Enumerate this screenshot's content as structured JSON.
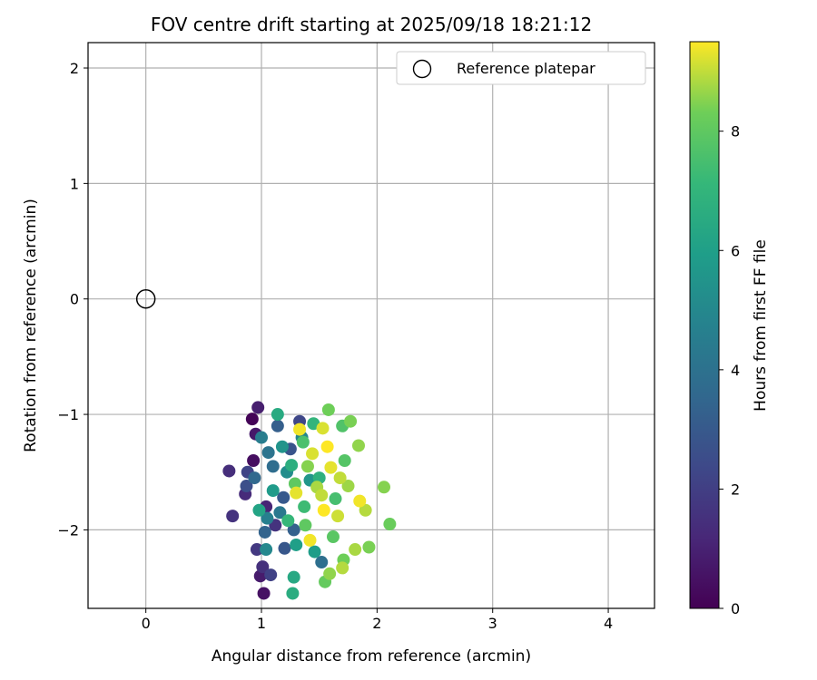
{
  "chart_data": {
    "type": "scatter",
    "title": "FOV centre drift starting at 2025/09/18 18:21:12",
    "xlabel": "Angular distance from reference (arcmin)",
    "ylabel": "Rotation from reference (arcmin)",
    "xlim": [
      -0.5,
      4.4
    ],
    "ylim": [
      -2.68,
      2.22
    ],
    "xticks": [
      0,
      1,
      2,
      3,
      4
    ],
    "yticks": [
      -2,
      -1,
      0,
      1,
      2
    ],
    "xtick_labels": [
      "0",
      "1",
      "2",
      "3",
      "4"
    ],
    "ytick_labels": [
      "−2",
      "−1",
      "0",
      "1",
      "2"
    ],
    "grid": true,
    "reference": {
      "x": 0,
      "y": 0,
      "label": "Reference platepar",
      "marker": "open-circle"
    },
    "legend": {
      "position": "top-right",
      "entries": [
        "Reference platepar"
      ]
    },
    "colorbar": {
      "label": "Hours from first FF file",
      "range": [
        0,
        9.5
      ],
      "ticks": [
        0,
        2,
        4,
        6,
        8
      ],
      "tick_labels": [
        "0",
        "2",
        "4",
        "6",
        "8"
      ],
      "colormap": "viridis"
    },
    "points": [
      {
        "x": 0.92,
        "y": -1.04,
        "h": 0.1
      },
      {
        "x": 0.97,
        "y": -0.94,
        "h": 0.9
      },
      {
        "x": 0.72,
        "y": -1.49,
        "h": 1.4
      },
      {
        "x": 0.75,
        "y": -1.88,
        "h": 1.6
      },
      {
        "x": 0.86,
        "y": -1.69,
        "h": 1.3
      },
      {
        "x": 1.02,
        "y": -2.55,
        "h": 0.5
      },
      {
        "x": 0.99,
        "y": -2.4,
        "h": 0.8
      },
      {
        "x": 1.01,
        "y": -2.32,
        "h": 1.5
      },
      {
        "x": 1.08,
        "y": -2.39,
        "h": 2.1
      },
      {
        "x": 0.96,
        "y": -2.17,
        "h": 1.8
      },
      {
        "x": 0.93,
        "y": -1.4,
        "h": 0.4
      },
      {
        "x": 0.95,
        "y": -1.17,
        "h": 0.7
      },
      {
        "x": 1.04,
        "y": -1.8,
        "h": 1.1
      },
      {
        "x": 1.12,
        "y": -1.96,
        "h": 1.6
      },
      {
        "x": 0.88,
        "y": -1.5,
        "h": 2.2
      },
      {
        "x": 0.87,
        "y": -1.62,
        "h": 2.6
      },
      {
        "x": 1.2,
        "y": -2.16,
        "h": 2.9
      },
      {
        "x": 1.03,
        "y": -2.02,
        "h": 3.4
      },
      {
        "x": 0.94,
        "y": -1.55,
        "h": 3.6
      },
      {
        "x": 1.1,
        "y": -1.45,
        "h": 3.8
      },
      {
        "x": 1.14,
        "y": -1.1,
        "h": 3.2
      },
      {
        "x": 1.33,
        "y": -1.06,
        "h": 2.3
      },
      {
        "x": 1.25,
        "y": -1.3,
        "h": 2.8
      },
      {
        "x": 1.19,
        "y": -1.72,
        "h": 3.0
      },
      {
        "x": 1.28,
        "y": -2.0,
        "h": 3.3
      },
      {
        "x": 1.06,
        "y": -1.33,
        "h": 4.1
      },
      {
        "x": 1.0,
        "y": -1.2,
        "h": 4.5
      },
      {
        "x": 0.98,
        "y": -1.83,
        "h": 6.2
      },
      {
        "x": 1.04,
        "y": -2.17,
        "h": 5.0
      },
      {
        "x": 1.14,
        "y": -1.0,
        "h": 6.5
      },
      {
        "x": 1.28,
        "y": -2.41,
        "h": 6.4
      },
      {
        "x": 1.27,
        "y": -2.55,
        "h": 6.6
      },
      {
        "x": 1.22,
        "y": -1.5,
        "h": 5.2
      },
      {
        "x": 1.35,
        "y": -1.2,
        "h": 4.9
      },
      {
        "x": 1.42,
        "y": -1.57,
        "h": 5.6
      },
      {
        "x": 1.46,
        "y": -2.19,
        "h": 5.9
      },
      {
        "x": 1.52,
        "y": -2.28,
        "h": 3.9
      },
      {
        "x": 1.3,
        "y": -2.13,
        "h": 6.0
      },
      {
        "x": 1.45,
        "y": -1.08,
        "h": 7.0
      },
      {
        "x": 1.58,
        "y": -0.96,
        "h": 8.3
      },
      {
        "x": 1.7,
        "y": -1.1,
        "h": 7.7
      },
      {
        "x": 1.77,
        "y": -1.06,
        "h": 8.4
      },
      {
        "x": 1.84,
        "y": -1.27,
        "h": 8.6
      },
      {
        "x": 2.06,
        "y": -1.63,
        "h": 8.5
      },
      {
        "x": 2.11,
        "y": -1.95,
        "h": 8.2
      },
      {
        "x": 1.93,
        "y": -2.15,
        "h": 8.4
      },
      {
        "x": 1.81,
        "y": -2.17,
        "h": 8.8
      },
      {
        "x": 1.7,
        "y": -2.33,
        "h": 8.9
      },
      {
        "x": 1.71,
        "y": -2.26,
        "h": 8.3
      },
      {
        "x": 1.59,
        "y": -2.38,
        "h": 8.6
      },
      {
        "x": 1.55,
        "y": -2.45,
        "h": 8.1
      },
      {
        "x": 1.53,
        "y": -1.12,
        "h": 9.2
      },
      {
        "x": 1.33,
        "y": -1.13,
        "h": 9.4
      },
      {
        "x": 1.36,
        "y": -1.24,
        "h": 7.6
      },
      {
        "x": 1.6,
        "y": -1.46,
        "h": 9.3
      },
      {
        "x": 1.68,
        "y": -1.55,
        "h": 9.0
      },
      {
        "x": 1.75,
        "y": -1.62,
        "h": 8.7
      },
      {
        "x": 1.85,
        "y": -1.75,
        "h": 9.4
      },
      {
        "x": 1.9,
        "y": -1.83,
        "h": 8.9
      },
      {
        "x": 1.66,
        "y": -1.88,
        "h": 9.1
      },
      {
        "x": 1.54,
        "y": -1.83,
        "h": 9.5
      },
      {
        "x": 1.38,
        "y": -1.96,
        "h": 8.0
      },
      {
        "x": 1.42,
        "y": -2.09,
        "h": 9.4
      },
      {
        "x": 1.62,
        "y": -2.06,
        "h": 7.9
      },
      {
        "x": 1.3,
        "y": -1.68,
        "h": 9.3
      },
      {
        "x": 1.48,
        "y": -1.63,
        "h": 8.8
      },
      {
        "x": 1.57,
        "y": -1.28,
        "h": 9.5
      },
      {
        "x": 1.44,
        "y": -1.34,
        "h": 9.2
      },
      {
        "x": 1.72,
        "y": -1.4,
        "h": 7.8
      },
      {
        "x": 1.64,
        "y": -1.73,
        "h": 7.5
      },
      {
        "x": 1.5,
        "y": -1.55,
        "h": 6.8
      },
      {
        "x": 1.37,
        "y": -1.8,
        "h": 7.3
      },
      {
        "x": 1.26,
        "y": -1.44,
        "h": 6.7
      },
      {
        "x": 1.18,
        "y": -1.28,
        "h": 5.5
      },
      {
        "x": 1.1,
        "y": -1.66,
        "h": 5.8
      },
      {
        "x": 1.05,
        "y": -1.9,
        "h": 4.6
      },
      {
        "x": 1.16,
        "y": -1.85,
        "h": 4.3
      },
      {
        "x": 1.23,
        "y": -1.92,
        "h": 7.1
      },
      {
        "x": 1.29,
        "y": -1.6,
        "h": 8.0
      },
      {
        "x": 1.4,
        "y": -1.45,
        "h": 8.5
      },
      {
        "x": 1.52,
        "y": -1.7,
        "h": 9.0
      }
    ]
  }
}
